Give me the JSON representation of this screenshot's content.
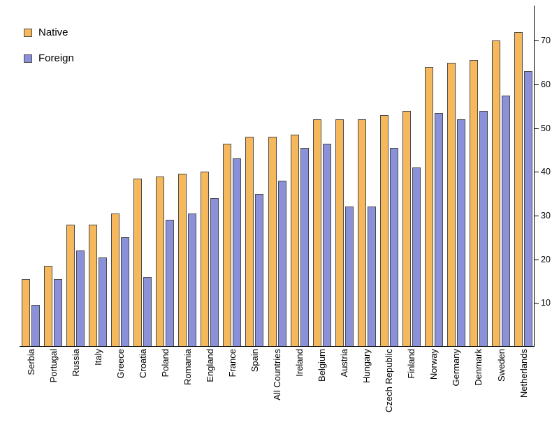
{
  "chart_data": {
    "type": "bar",
    "title": "",
    "xlabel": "",
    "ylabel": "",
    "categories": [
      "Serbia",
      "Portugal",
      "Russia",
      "Italy",
      "Greece",
      "Croatia",
      "Poland",
      "Romania",
      "England",
      "France",
      "Spain",
      "All Countries",
      "Ireland",
      "Belgium",
      "Austria",
      "Hungary",
      "Czech Republic",
      "Finland",
      "Norway",
      "Germany",
      "Denmark",
      "Sweden",
      "Netherlands"
    ],
    "series": [
      {
        "name": "Native",
        "color": "#F6B85C",
        "values": [
          15.5,
          18.5,
          28,
          28,
          30.5,
          38.5,
          39,
          39.5,
          40,
          46.5,
          48,
          48,
          48.5,
          52,
          52,
          52,
          53,
          54,
          64,
          65,
          65.5,
          70,
          72
        ]
      },
      {
        "name": "Foreign",
        "color": "#8A91D8",
        "values": [
          9.5,
          15.5,
          22,
          20.5,
          25,
          16,
          29,
          30.5,
          34,
          43,
          35,
          38,
          45.5,
          46.5,
          32,
          32,
          45.5,
          41,
          53.5,
          52,
          54,
          57.5,
          63
        ]
      }
    ],
    "ylim": [
      0,
      78
    ],
    "yticks": [
      10,
      20,
      30,
      40,
      50,
      60,
      70
    ],
    "legend_position": "top-left",
    "grid": false,
    "y_axis_side": "right",
    "x_label_rotation": "vertical"
  }
}
